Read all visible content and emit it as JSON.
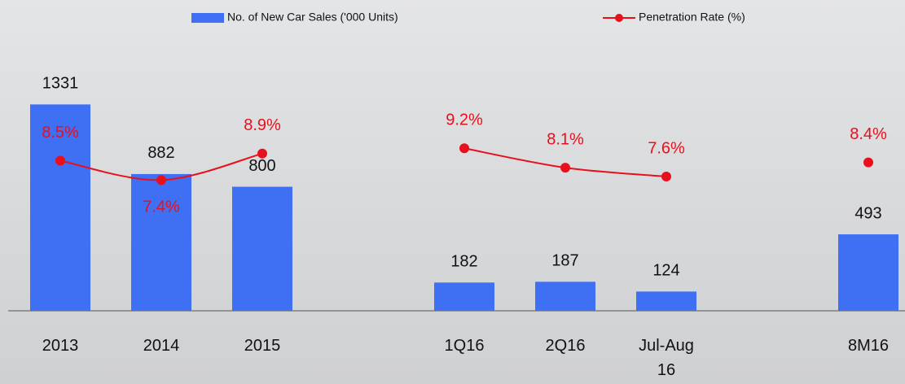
{
  "chart_data": {
    "type": "bar",
    "categories": [
      "2013",
      "2014",
      "2015",
      null,
      "1Q16",
      "2Q16",
      "Jul-Aug 16",
      null,
      "8M16"
    ],
    "series": [
      {
        "name": "No. of New Car Sales ('000 Units)",
        "type": "bar",
        "color": "#3f6ff2",
        "values": [
          1331,
          882,
          800,
          null,
          182,
          187,
          124,
          null,
          493
        ]
      },
      {
        "name": "Penetration Rate (%)",
        "type": "line",
        "axis": "y2",
        "color": "#e8101c",
        "values": [
          8.5,
          7.4,
          8.9,
          null,
          9.2,
          8.1,
          7.6,
          null,
          8.4
        ],
        "value_labels": [
          "8.5%",
          "7.4%",
          "8.9%",
          null,
          "9.2%",
          "8.1%",
          "7.6%",
          null,
          "8.4%"
        ]
      }
    ],
    "ylim": [
      0,
      1800
    ],
    "y2lim": [
      0,
      15.8
    ],
    "legend": "top"
  }
}
